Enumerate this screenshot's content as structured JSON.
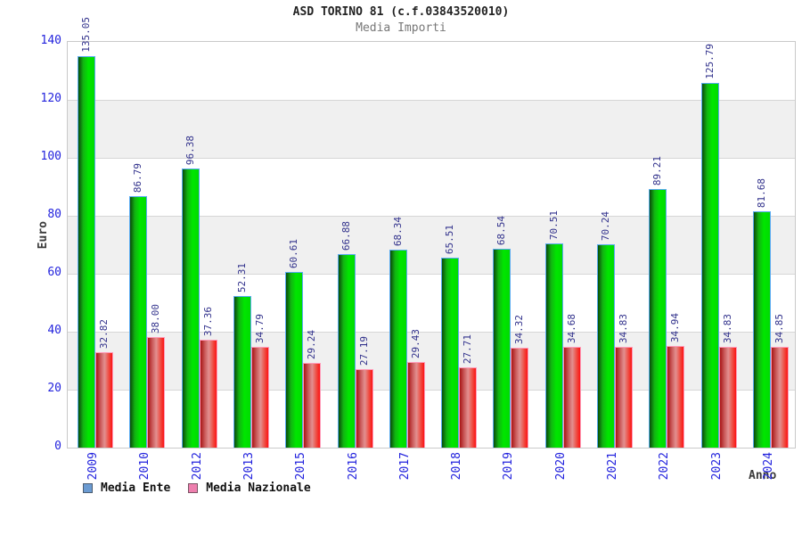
{
  "header": {
    "title": "ASD TORINO 81 (c.f.03843520010)",
    "subtitle": "Media Importi"
  },
  "chart_data": {
    "type": "bar",
    "title": "ASD TORINO 81 (c.f.03843520010)",
    "subtitle": "Media Importi",
    "xlabel": "Anno",
    "ylabel": "Euro",
    "ylim": [
      0,
      140
    ],
    "ytick_step": 20,
    "grid": "horizontal-bands",
    "legend_position": "bottom-left",
    "categories": [
      "2009",
      "2010",
      "2012",
      "2013",
      "2015",
      "2016",
      "2017",
      "2018",
      "2019",
      "2020",
      "2021",
      "2022",
      "2023",
      "2024"
    ],
    "series": [
      {
        "name": "Media Ente",
        "legend_color": "#6b9bd2",
        "bar_edge_color": "#58aaf0",
        "bar_gradient": [
          "#0a4a0a 0%",
          "#12b312 30%",
          "#00e600 62%",
          "#00db00 100%"
        ],
        "values": [
          135.05,
          86.79,
          96.38,
          52.31,
          60.61,
          66.88,
          68.34,
          65.51,
          68.54,
          70.51,
          70.24,
          89.21,
          125.79,
          81.68
        ]
      },
      {
        "name": "Media Nazionale",
        "legend_color": "#ee7fae",
        "bar_edge_color": "#ff9ab8",
        "bar_gradient": [
          "#a81616 0%",
          "#cd6060 30%",
          "#e29090 52%",
          "#ee4e44 78%",
          "#fb1414 100%"
        ],
        "values": [
          32.82,
          38.0,
          37.36,
          34.79,
          29.24,
          27.19,
          29.43,
          27.71,
          34.32,
          34.68,
          34.83,
          34.94,
          34.83,
          34.85
        ]
      }
    ],
    "colors": {
      "tick_label": "#2222dd",
      "value_label": "#32328c",
      "band_gray": "#f0f0f0",
      "plot_border": "#c9c9c9",
      "title": "#222222",
      "subtitle": "#777777"
    }
  }
}
